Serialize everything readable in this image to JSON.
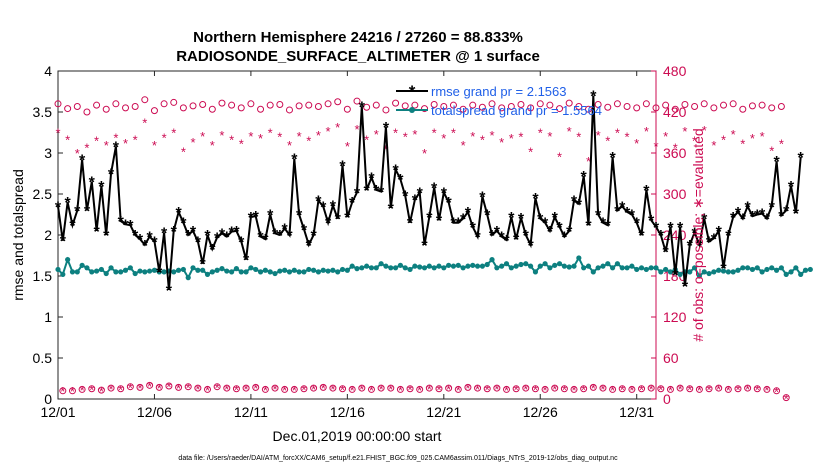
{
  "chart_data": {
    "type": "line",
    "title": "Northern Hemisphere 24216 / 27260 = 88.833%",
    "subtitle": "RADIOSONDE_SURFACE_ALTIMETER @ 1 surface",
    "xlabel": "Dec.01,2019 00:00:00 start",
    "ylabel_left": "rmse and totalspread",
    "ylabel_right": "# of obs: o=possible; ∗=evaluated",
    "footer": "data file: /Users/raeder/DAI/ATM_forcXX/CAM6_setup/f.e21.FHIST_BGC.f09_025.CAM6assim.011/Diags_NTrS_2019-12/obs_diag_output.nc",
    "x_range": [
      1,
      32
    ],
    "ylim_left": [
      0,
      4
    ],
    "ylim_right": [
      0,
      480
    ],
    "x_ticks": [
      1,
      6,
      11,
      16,
      21,
      26,
      31
    ],
    "x_tick_labels": [
      "12/01",
      "12/06",
      "12/11",
      "12/16",
      "12/21",
      "12/26",
      "12/31"
    ],
    "y_left_ticks": [
      0,
      0.5,
      1,
      1.5,
      2,
      2.5,
      3,
      3.5,
      4
    ],
    "y_left_tick_labels": [
      "0",
      "0.5",
      "1",
      "1.5",
      "2",
      "2.5",
      "3",
      "3.5",
      "4"
    ],
    "y_right_ticks": [
      0,
      60,
      120,
      180,
      240,
      300,
      360,
      420,
      480
    ],
    "y_right_tick_labels": [
      "0",
      "60",
      "120",
      "180",
      "240",
      "300",
      "360",
      "420",
      "480"
    ],
    "legend": {
      "position": "top-right",
      "entries": [
        "rmse grand pr = 2.1563",
        "totalspread grand pr = 1.5564"
      ]
    },
    "colors": {
      "rmse": "#000000",
      "totalspread": "#0d8080",
      "obs": "#cc0b52",
      "legend_text": "#1f5fe8"
    },
    "series": [
      {
        "name": "rmse",
        "axis": "left",
        "x_start": 1,
        "x_step": 0.25,
        "values": [
          2.35,
          1.93,
          2.4,
          2.12,
          2.3,
          2.92,
          2.3,
          2.65,
          2.05,
          2.6,
          2.0,
          2.75,
          3.08,
          2.17,
          2.13,
          2.12,
          2.0,
          1.95,
          1.88,
          1.98,
          1.92,
          1.55,
          2.03,
          1.33,
          2.05,
          2.28,
          2.15,
          2.0,
          2.05,
          1.92,
          1.65,
          2.0,
          1.83,
          1.97,
          2.02,
          1.98,
          2.04,
          2.05,
          1.92,
          1.7,
          2.22,
          2.23,
          1.98,
          1.95,
          2.25,
          2.02,
          2.0,
          2.08,
          2.0,
          2.93,
          2.25,
          2.07,
          1.88,
          2.0,
          2.42,
          2.35,
          2.15,
          2.36,
          2.2,
          2.85,
          2.22,
          2.4,
          2.52,
          3.57,
          2.55,
          2.7,
          2.55,
          2.53,
          3.32,
          2.33,
          2.8,
          2.68,
          2.48,
          2.15,
          2.43,
          2.52,
          1.88,
          2.22,
          2.58,
          2.18,
          2.52,
          2.4,
          2.15,
          2.15,
          2.2,
          2.28,
          2.1,
          1.98,
          2.47,
          2.25,
          2.0,
          2.05,
          1.98,
          1.94,
          2.22,
          1.95,
          2.21,
          2.0,
          1.88,
          2.45,
          2.2,
          2.15,
          2.05,
          2.22,
          2.1,
          1.98,
          2.05,
          2.42,
          2.38,
          2.72,
          2.12,
          3.7,
          2.25,
          2.15,
          2.12,
          2.95,
          2.3,
          2.35,
          2.28,
          2.25,
          2.15,
          2.0,
          2.55,
          2.18,
          2.1,
          2.0,
          1.8,
          2.1,
          1.52,
          2.1,
          1.38,
          1.88,
          2.03,
          1.88,
          2.2,
          1.92,
          1.96,
          2.05,
          1.6,
          2.0,
          2.22,
          2.28,
          2.2,
          2.35,
          2.23,
          2.25,
          2.26,
          2.2,
          2.35,
          2.9,
          2.24,
          2.3,
          2.6,
          2.27,
          2.95
        ]
      },
      {
        "name": "totalspread",
        "axis": "left",
        "x_start": 1,
        "x_step": 0.25,
        "values": [
          1.58,
          1.52,
          1.7,
          1.55,
          1.55,
          1.63,
          1.6,
          1.55,
          1.56,
          1.58,
          1.53,
          1.6,
          1.55,
          1.55,
          1.57,
          1.6,
          1.53,
          1.56,
          1.55,
          1.56,
          1.57,
          1.55,
          1.55,
          1.56,
          1.55,
          1.57,
          1.58,
          1.48,
          1.6,
          1.57,
          1.57,
          1.52,
          1.55,
          1.57,
          1.59,
          1.56,
          1.55,
          1.59,
          1.55,
          1.55,
          1.6,
          1.58,
          1.55,
          1.57,
          1.55,
          1.53,
          1.56,
          1.57,
          1.55,
          1.57,
          1.55,
          1.55,
          1.58,
          1.57,
          1.55,
          1.57,
          1.56,
          1.57,
          1.55,
          1.58,
          1.57,
          1.62,
          1.59,
          1.6,
          1.62,
          1.6,
          1.6,
          1.65,
          1.62,
          1.6,
          1.6,
          1.63,
          1.6,
          1.58,
          1.62,
          1.61,
          1.6,
          1.62,
          1.6,
          1.62,
          1.6,
          1.63,
          1.62,
          1.63,
          1.6,
          1.62,
          1.63,
          1.62,
          1.62,
          1.64,
          1.7,
          1.6,
          1.62,
          1.65,
          1.6,
          1.62,
          1.64,
          1.65,
          1.62,
          1.55,
          1.62,
          1.65,
          1.6,
          1.63,
          1.65,
          1.62,
          1.61,
          1.62,
          1.72,
          1.6,
          1.62,
          1.55,
          1.6,
          1.62,
          1.65,
          1.6,
          1.65,
          1.6,
          1.6,
          1.62,
          1.58,
          1.6,
          1.58,
          1.6,
          1.6,
          1.55,
          1.58,
          1.55,
          1.58,
          1.52,
          1.55,
          1.55,
          1.6,
          1.5,
          1.55,
          1.53,
          1.55,
          1.57,
          1.56,
          1.55,
          1.55,
          1.57,
          1.6,
          1.6,
          1.58,
          1.6,
          1.55,
          1.58,
          1.6,
          1.57,
          1.6,
          1.52,
          1.55,
          1.6,
          1.52,
          1.57,
          1.58
        ]
      },
      {
        "name": "possible",
        "axis": "right",
        "marker": "o",
        "x_start": 1,
        "x_step": 0.25,
        "values": [
          432,
          12,
          425,
          12,
          428,
          14,
          420,
          15,
          430,
          13,
          424,
          16,
          432,
          15,
          426,
          18,
          428,
          17,
          438,
          20,
          422,
          17,
          432,
          19,
          434,
          17,
          426,
          18,
          429,
          16,
          431,
          14,
          424,
          18,
          433,
          16,
          430,
          15,
          426,
          16,
          432,
          17,
          424,
          14,
          430,
          16,
          431,
          14,
          423,
          14,
          429,
          15,
          430,
          16,
          428,
          17,
          432,
          16,
          435,
          15,
          424,
          14,
          436,
          16,
          427,
          14,
          430,
          16,
          423,
          16,
          433,
          14,
          429,
          15,
          430,
          14,
          425,
          16,
          431,
          15,
          428,
          16,
          430,
          14,
          424,
          17,
          430,
          16,
          427,
          15,
          432,
          16,
          426,
          14,
          428,
          15,
          431,
          16,
          426,
          15,
          432,
          14,
          430,
          16,
          425,
          15,
          433,
          14,
          428,
          15,
          424,
          17,
          431,
          16,
          427,
          14,
          432,
          15,
          428,
          14,
          426,
          15,
          432,
          16,
          426,
          15,
          430,
          14,
          424,
          16,
          431,
          15,
          428,
          14,
          432,
          15,
          426,
          16,
          430,
          14,
          432,
          15,
          424,
          16,
          429,
          15,
          430,
          14,
          426,
          12,
          428,
          2
        ]
      },
      {
        "name": "evaluated",
        "axis": "right",
        "marker": "*",
        "x_start": 1,
        "x_step": 0.25,
        "values": [
          390,
          12,
          380,
          12,
          360,
          13,
          368,
          14,
          378,
          12,
          372,
          15,
          383,
          14,
          375,
          17,
          380,
          16,
          405,
          19,
          372,
          16,
          383,
          18,
          390,
          16,
          362,
          17,
          376,
          15,
          385,
          13,
          372,
          17,
          386,
          15,
          380,
          14,
          374,
          15,
          385,
          16,
          382,
          13,
          390,
          15,
          384,
          13,
          372,
          13,
          385,
          14,
          378,
          15,
          386,
          16,
          392,
          15,
          398,
          14,
          370,
          13,
          395,
          15,
          380,
          13,
          388,
          15,
          365,
          15,
          390,
          13,
          384,
          14,
          388,
          13,
          360,
          15,
          390,
          14,
          382,
          15,
          390,
          13,
          372,
          16,
          385,
          15,
          380,
          14,
          386,
          15,
          376,
          13,
          382,
          14,
          384,
          15,
          362,
          14,
          390,
          13,
          385,
          15,
          355,
          14,
          392,
          13,
          384,
          14,
          348,
          16,
          386,
          15,
          378,
          13,
          390,
          14,
          384,
          13,
          375,
          14,
          392,
          15,
          370,
          14,
          385,
          13,
          368,
          15,
          392,
          14,
          378,
          13,
          394,
          14,
          372,
          15,
          380,
          13,
          388,
          14,
          374,
          15,
          382,
          14,
          385,
          13,
          364,
          11,
          374,
          1
        ]
      }
    ]
  }
}
